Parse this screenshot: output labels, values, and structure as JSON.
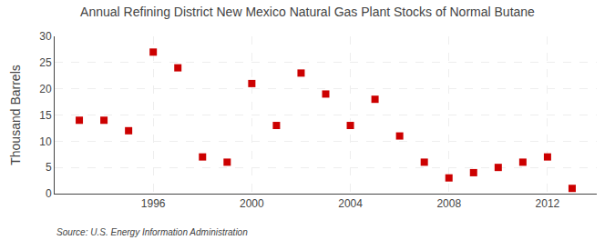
{
  "chart_data": {
    "type": "scatter",
    "title": "Annual Refining District New Mexico Natural Gas Plant Stocks of Normal Butane",
    "ylabel": "Thousand Barrels",
    "annotations": [
      "Source: U.S. Energy Information Administration"
    ],
    "x": [
      1993,
      1994,
      1995,
      1996,
      1997,
      1998,
      1999,
      2000,
      2001,
      2002,
      2003,
      2004,
      2005,
      2006,
      2007,
      2008,
      2009,
      2010,
      2011,
      2012,
      2013
    ],
    "values": [
      14,
      14,
      12,
      27,
      24,
      7,
      6,
      21,
      13,
      23,
      19,
      13,
      18,
      11,
      6,
      3,
      4,
      5,
      6,
      7,
      1
    ],
    "color": "#cc0000",
    "marker": "square",
    "xlim": [
      1992,
      2014
    ],
    "xticks": [
      1996,
      2000,
      2004,
      2008,
      2012
    ],
    "ylim": [
      0,
      30
    ],
    "yticks": [
      0,
      5,
      10,
      15,
      20,
      25,
      30
    ],
    "grid": true
  }
}
